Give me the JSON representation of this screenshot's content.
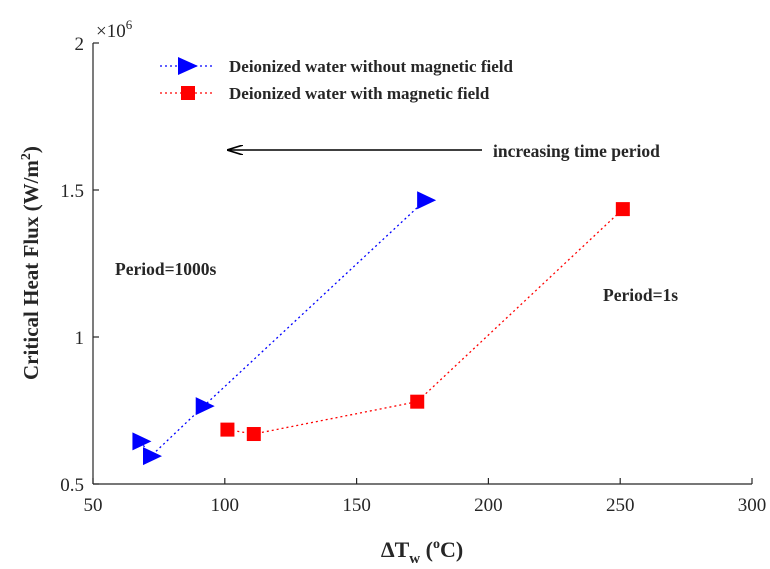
{
  "chart_data": {
    "type": "line",
    "xlabel": {
      "base": "ΔT",
      "sub": "w",
      "open": " (",
      "sup": "o",
      "close": "C)"
    },
    "ylabel": {
      "main": "Critical Heat Flux (W/m",
      "sup": "2",
      "close": ")"
    },
    "xlim": [
      50,
      300
    ],
    "ylim": [
      0.5,
      2
    ],
    "x_ticks": [
      50,
      100,
      150,
      200,
      250,
      300
    ],
    "x_tick_labels": [
      "50",
      "100",
      "150",
      "200",
      "250",
      "300"
    ],
    "y_ticks": [
      0.5,
      1,
      1.5,
      2
    ],
    "y_tick_labels": [
      "0.5",
      "1",
      "1.5",
      "2"
    ],
    "y_multiplier": {
      "base": "×10",
      "exp": "6"
    },
    "grid": false,
    "legend_position": "top-left",
    "series": [
      {
        "name": "Deionized water without magnetic field",
        "color": "#0000ff",
        "marker": "triangle-right",
        "line_style": "dotted",
        "x": [
          68,
          72,
          92,
          176
        ],
        "y": [
          0.645,
          0.595,
          0.765,
          1.465
        ]
      },
      {
        "name": "Deionized water with magnetic field",
        "color": "#ff0000",
        "marker": "square",
        "line_style": "dotted",
        "x": [
          101,
          111,
          173,
          251
        ],
        "y": [
          0.685,
          0.67,
          0.78,
          1.435
        ]
      }
    ],
    "annotations": [
      {
        "id": "arrow",
        "text": "increasing time period",
        "arrow": true
      },
      {
        "id": "left",
        "text": "Period=1000s"
      },
      {
        "id": "right",
        "text": "Period=1s"
      }
    ]
  }
}
